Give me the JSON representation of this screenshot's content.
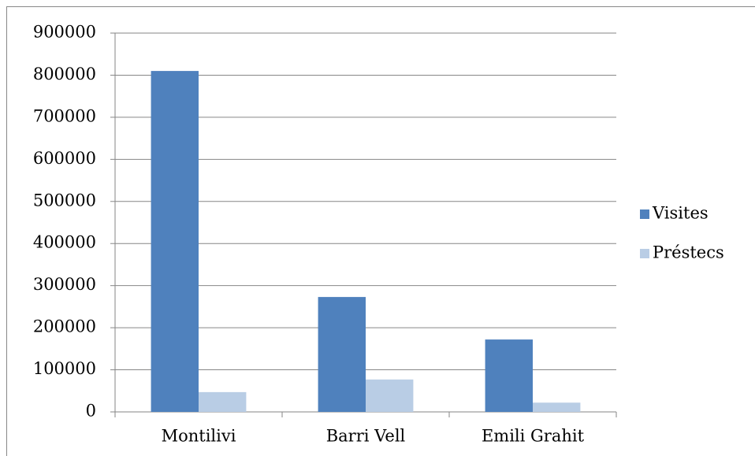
{
  "chart_data": {
    "type": "bar",
    "categories": [
      "Montilivi",
      "Barri Vell",
      "Emili Grahit"
    ],
    "series": [
      {
        "name": "Visites",
        "color": "#4f81bd",
        "values": [
          810000,
          273000,
          172000
        ]
      },
      {
        "name": "Préstecs",
        "color": "#b9cde5",
        "values": [
          47000,
          77000,
          22000
        ]
      }
    ],
    "ylim": [
      0,
      900000
    ],
    "yticks": [
      0,
      100000,
      200000,
      300000,
      400000,
      500000,
      600000,
      700000,
      800000,
      900000
    ],
    "grid": true,
    "legend": "right"
  }
}
